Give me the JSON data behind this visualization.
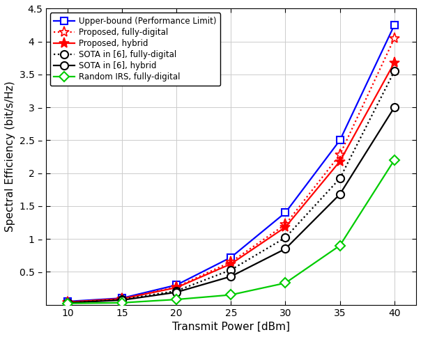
{
  "x": [
    10,
    15,
    20,
    25,
    30,
    35,
    40
  ],
  "upper_bound": [
    0.05,
    0.1,
    0.3,
    0.72,
    1.4,
    2.5,
    4.25
  ],
  "proposed_fd": [
    0.04,
    0.09,
    0.27,
    0.65,
    1.22,
    2.28,
    4.05
  ],
  "proposed_hybrid": [
    0.04,
    0.09,
    0.26,
    0.62,
    1.18,
    2.18,
    3.68
  ],
  "sota_fd": [
    0.03,
    0.08,
    0.21,
    0.53,
    1.02,
    1.92,
    3.55
  ],
  "sota_hybrid": [
    0.03,
    0.07,
    0.19,
    0.43,
    0.85,
    1.68,
    3.0
  ],
  "random_irs_fd": [
    0.02,
    0.03,
    0.08,
    0.15,
    0.33,
    0.9,
    2.2
  ],
  "colors": {
    "upper_bound": "#0000FF",
    "proposed_fd": "#FF0000",
    "proposed_hybrid": "#FF0000",
    "sota_fd": "#000000",
    "sota_hybrid": "#000000",
    "random_irs_fd": "#00CC00"
  },
  "legend_labels": [
    "Upper-bound (Performance Limit)",
    "Proposed, fully-digital",
    "Proposed, hybrid",
    "SOTA in [6], fully-digital",
    "SOTA in [6], hybrid",
    "Random IRS, fully-digital"
  ],
  "xlabel": "Transmit Power [dBm]",
  "ylabel": "Spectral Efficiency (bit/s/Hz)",
  "ylim": [
    0,
    4.5
  ],
  "xlim": [
    8,
    42
  ],
  "ytick_vals": [
    0.5,
    1.0,
    1.5,
    2.0,
    2.5,
    3.0,
    3.5,
    4.0,
    4.5
  ],
  "ytick_labels": [
    "0.5 –",
    "1 –",
    "1.5 –",
    "2 –",
    "2.5 –",
    "3 –",
    "3.5 –",
    "4 –",
    "4.5"
  ],
  "xticks": [
    10,
    15,
    20,
    25,
    30,
    35,
    40
  ],
  "grid_color": "#CCCCCC",
  "background_color": "#FFFFFF"
}
